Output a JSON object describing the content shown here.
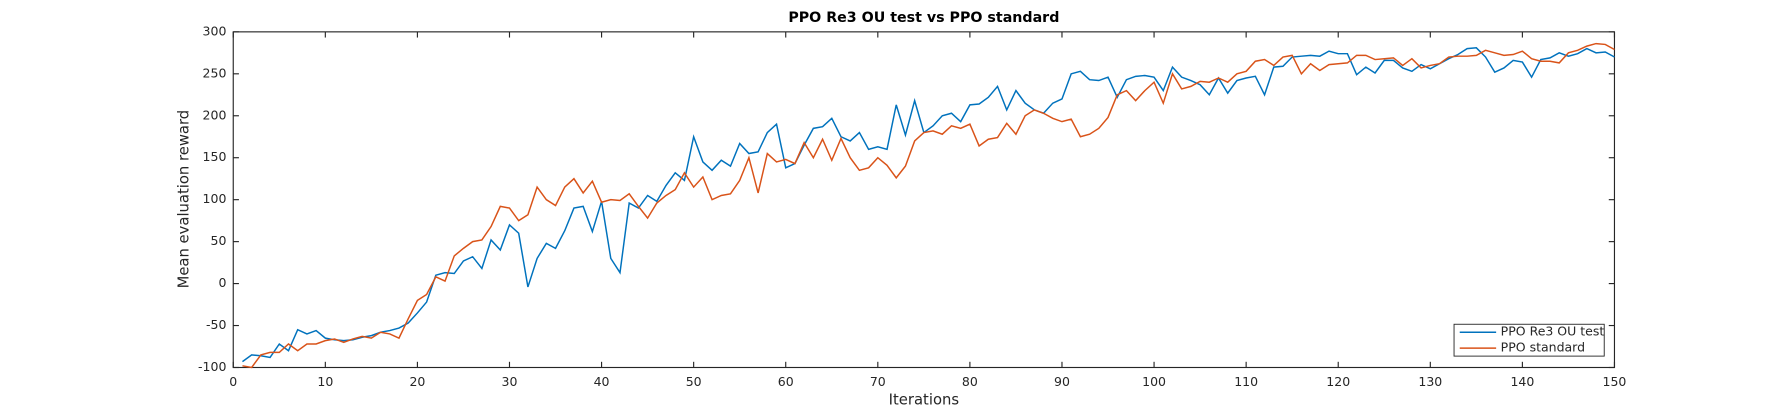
{
  "chart_data": {
    "type": "line",
    "title": "PPO Re3 OU test vs PPO standard",
    "xlabel": "Iterations",
    "ylabel": "Mean evaluation reward",
    "x": [
      1,
      2,
      3,
      4,
      5,
      6,
      7,
      8,
      9,
      10,
      11,
      12,
      13,
      14,
      15,
      16,
      17,
      18,
      19,
      20,
      21,
      22,
      23,
      24,
      25,
      26,
      27,
      28,
      29,
      30,
      31,
      32,
      33,
      34,
      35,
      36,
      37,
      38,
      39,
      40,
      41,
      42,
      43,
      44,
      45,
      46,
      47,
      48,
      49,
      50,
      51,
      52,
      53,
      54,
      55,
      56,
      57,
      58,
      59,
      60,
      61,
      62,
      63,
      64,
      65,
      66,
      67,
      68,
      69,
      70,
      71,
      72,
      73,
      74,
      75,
      76,
      77,
      78,
      79,
      80,
      81,
      82,
      83,
      84,
      85,
      86,
      87,
      88,
      89,
      90,
      91,
      92,
      93,
      94,
      95,
      96,
      97,
      98,
      99,
      100,
      101,
      102,
      103,
      104,
      105,
      106,
      107,
      108,
      109,
      110,
      111,
      112,
      113,
      114,
      115,
      116,
      117,
      118,
      119,
      120,
      121,
      122,
      123,
      124,
      125,
      126,
      127,
      128,
      129,
      130,
      131,
      132,
      133,
      134,
      135,
      136,
      137,
      138,
      139,
      140,
      141,
      142,
      143,
      144,
      145,
      146,
      147,
      148,
      149,
      150
    ],
    "series": [
      {
        "name": "PPO Re3 OU test",
        "color": "#0072bd",
        "values": [
          -93,
          -85,
          -86,
          -88,
          -72,
          -80,
          -55,
          -60,
          -56,
          -65,
          -67,
          -68,
          -67,
          -64,
          -62,
          -58,
          -56,
          -53,
          -47,
          -35,
          -22,
          10,
          13,
          12,
          27,
          32,
          18,
          52,
          40,
          70,
          60,
          -4,
          30,
          48,
          42,
          63,
          90,
          92,
          62,
          98,
          30,
          13,
          96,
          90,
          105,
          98,
          117,
          132,
          123,
          175,
          145,
          135,
          147,
          140,
          167,
          155,
          157,
          180,
          190,
          138,
          143,
          165,
          185,
          187,
          197,
          175,
          170,
          180,
          160,
          163,
          160,
          213,
          177,
          218,
          180,
          188,
          200,
          203,
          193,
          213,
          214,
          222,
          235,
          207,
          230,
          215,
          207,
          203,
          215,
          220,
          250,
          253,
          243,
          242,
          246,
          222,
          243,
          247,
          248,
          246,
          230,
          258,
          246,
          242,
          237,
          225,
          245,
          227,
          242,
          245,
          247,
          225,
          258,
          259,
          270,
          271,
          272,
          271,
          277,
          274,
          274,
          249,
          258,
          251,
          266,
          266,
          257,
          253,
          261,
          256,
          262,
          268,
          273,
          280,
          281,
          270,
          252,
          257,
          266,
          264,
          246,
          267,
          269,
          275,
          271,
          274,
          280,
          275,
          276,
          270
        ]
      },
      {
        "name": "PPO standard",
        "color": "#d95319",
        "values": [
          -98,
          -100,
          -85,
          -82,
          -82,
          -72,
          -80,
          -72,
          -72,
          -68,
          -66,
          -70,
          -66,
          -63,
          -65,
          -58,
          -60,
          -65,
          -42,
          -20,
          -13,
          8,
          3,
          33,
          42,
          50,
          52,
          68,
          92,
          90,
          75,
          82,
          115,
          100,
          93,
          115,
          125,
          108,
          122,
          97,
          100,
          99,
          107,
          92,
          78,
          96,
          105,
          112,
          132,
          115,
          127,
          100,
          105,
          107,
          123,
          150,
          108,
          155,
          145,
          148,
          143,
          168,
          150,
          172,
          147,
          173,
          150,
          135,
          138,
          150,
          141,
          126,
          140,
          170,
          180,
          182,
          178,
          188,
          185,
          190,
          164,
          172,
          174,
          191,
          178,
          200,
          207,
          203,
          197,
          193,
          196,
          175,
          178,
          185,
          198,
          225,
          230,
          218,
          230,
          240,
          215,
          250,
          232,
          235,
          241,
          240,
          245,
          240,
          250,
          253,
          265,
          267,
          260,
          270,
          272,
          250,
          262,
          254,
          261,
          262,
          263,
          272,
          272,
          267,
          268,
          269,
          260,
          268,
          257,
          260,
          262,
          270,
          271,
          271,
          272,
          278,
          275,
          272,
          273,
          277,
          268,
          265,
          265,
          263,
          275,
          278,
          283,
          286,
          285,
          279
        ]
      }
    ],
    "xlim": [
      0,
      150
    ],
    "xticks": [
      0,
      10,
      20,
      30,
      40,
      50,
      60,
      70,
      80,
      90,
      100,
      110,
      120,
      130,
      140,
      150
    ],
    "ylim": [
      -100,
      300
    ],
    "yticks": [
      -100,
      -50,
      0,
      50,
      100,
      150,
      200,
      250,
      300
    ],
    "legend": "lower right",
    "grid": false
  }
}
